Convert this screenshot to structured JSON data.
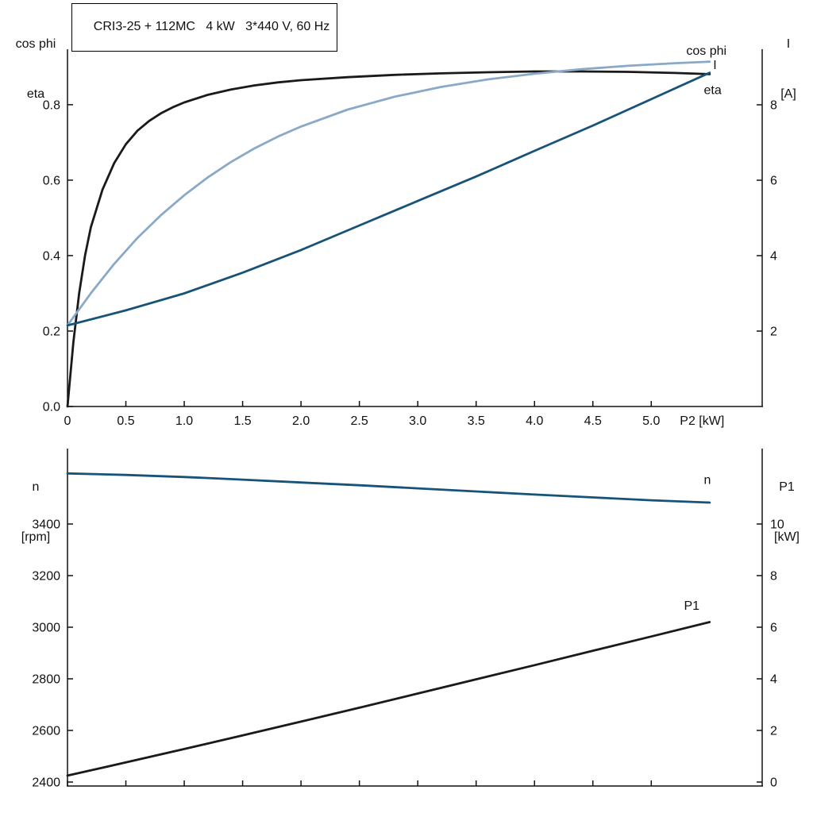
{
  "page": {
    "background": "#ffffff"
  },
  "colors": {
    "black_curve": "#1a1a1a",
    "light_blue_curve": "#8aa9c7",
    "dark_blue_curve": "#175379",
    "axis": "#111111"
  },
  "chart_data": [
    {
      "id": "top",
      "type": "line",
      "title": "CRI3-25 + 112MC   4 kW   3*440 V, 60 Hz",
      "grid": false,
      "legend_position": "inline-labels",
      "corner_labels": {
        "top_left": [
          "cos phi",
          "eta"
        ],
        "top_right": [
          "I",
          "[A]"
        ]
      },
      "x_axis": {
        "label": "P2 [kW]",
        "min": 0,
        "max": 5.95,
        "tick_values": [
          0,
          0.5,
          1,
          1.5,
          2,
          2.5,
          3,
          3.5,
          4,
          4.5,
          5
        ],
        "tick_labels": [
          "0",
          "0.5",
          "1.0",
          "1.5",
          "2.0",
          "2.5",
          "3.0",
          "3.5",
          "4.0",
          "4.5",
          "5.0"
        ]
      },
      "left_axis": {
        "label": "cos phi / eta",
        "min": 0,
        "max": 0.947,
        "tick_values": [
          0,
          0.2,
          0.4,
          0.6,
          0.8
        ],
        "tick_labels": [
          "0.0",
          "0.2",
          "0.4",
          "0.6",
          "0.8"
        ]
      },
      "right_axis": {
        "label": "I [A]",
        "min": 0,
        "max": 9.474,
        "tick_values": [
          2,
          4,
          6,
          8
        ],
        "tick_labels": [
          "2",
          "4",
          "6",
          "8"
        ]
      },
      "series": [
        {
          "name": "eta",
          "axis": "left",
          "color": "#1a1a1a",
          "x": [
            0,
            0.05,
            0.1,
            0.15,
            0.2,
            0.3,
            0.4,
            0.5,
            0.6,
            0.7,
            0.8,
            0.9,
            1.0,
            1.2,
            1.4,
            1.6,
            1.8,
            2.0,
            2.4,
            2.8,
            3.2,
            3.6,
            4.0,
            4.4,
            4.8,
            5.2,
            5.5
          ],
          "y": [
            0,
            0.17,
            0.3,
            0.4,
            0.475,
            0.575,
            0.645,
            0.695,
            0.731,
            0.757,
            0.777,
            0.793,
            0.806,
            0.826,
            0.84,
            0.851,
            0.859,
            0.865,
            0.873,
            0.879,
            0.883,
            0.886,
            0.888,
            0.888,
            0.887,
            0.884,
            0.881
          ],
          "label": {
            "text": "eta",
            "x": 5.45,
            "y": 0.828,
            "color": "#1a1a1a"
          }
        },
        {
          "name": "cos phi",
          "axis": "left",
          "color": "#8aa9c7",
          "x": [
            0,
            0.2,
            0.4,
            0.6,
            0.8,
            1.0,
            1.2,
            1.4,
            1.6,
            1.8,
            2.0,
            2.4,
            2.8,
            3.2,
            3.6,
            4.0,
            4.4,
            4.8,
            5.2,
            5.5
          ],
          "y": [
            0.215,
            0.3,
            0.378,
            0.447,
            0.507,
            0.56,
            0.607,
            0.648,
            0.684,
            0.715,
            0.742,
            0.787,
            0.821,
            0.847,
            0.867,
            0.882,
            0.894,
            0.903,
            0.91,
            0.914
          ],
          "label": {
            "text": "cos phi",
            "x": 5.3,
            "y": 0.932,
            "color": "#8aa9c7"
          }
        },
        {
          "name": "I",
          "axis": "right",
          "color": "#175379",
          "x": [
            0,
            0.5,
            1.0,
            1.5,
            2.0,
            2.5,
            3.0,
            3.5,
            4.0,
            4.5,
            5.0,
            5.5
          ],
          "y": [
            2.15,
            2.55,
            3.0,
            3.55,
            4.15,
            4.8,
            5.45,
            6.1,
            6.78,
            7.45,
            8.15,
            8.85
          ],
          "label": {
            "text": "I",
            "x": 5.53,
            "y": 8.95,
            "color": "#175379"
          }
        }
      ]
    },
    {
      "id": "bottom",
      "type": "line",
      "title": "",
      "grid": false,
      "legend_position": "inline-labels",
      "corner_labels": {
        "top_left": [
          "n",
          "[rpm]"
        ],
        "top_right": [
          "P1",
          "[kW]"
        ]
      },
      "x_axis": {
        "label": "",
        "min": 0,
        "max": 5.95,
        "tick_values": [
          0,
          0.5,
          1,
          1.5,
          2,
          2.5,
          3,
          3.5,
          4,
          4.5,
          5
        ],
        "tick_labels": []
      },
      "left_axis": {
        "label": "n [rpm]",
        "min": 2384.6,
        "max": 3692.3,
        "tick_values": [
          2400,
          2600,
          2800,
          3000,
          3200,
          3400
        ],
        "tick_labels": [
          "2400",
          "2600",
          "2800",
          "3000",
          "3200",
          "3400"
        ]
      },
      "right_axis": {
        "label": "P1 [kW]",
        "min": -0.154,
        "max": 12.923,
        "tick_values": [
          0,
          2,
          4,
          6,
          8,
          10
        ],
        "tick_labels": [
          "0",
          "2",
          "4",
          "6",
          "8",
          "10"
        ]
      },
      "series": [
        {
          "name": "n",
          "axis": "left",
          "color": "#175379",
          "x": [
            0,
            0.5,
            1.0,
            1.5,
            2.0,
            2.5,
            3.0,
            3.5,
            4.0,
            4.5,
            5.0,
            5.5
          ],
          "y": [
            3596,
            3590,
            3582,
            3572,
            3561,
            3550,
            3538,
            3526,
            3514,
            3503,
            3492,
            3483
          ],
          "label": {
            "text": "n",
            "x": 5.45,
            "y": 3556,
            "color": "#175379"
          }
        },
        {
          "name": "P1",
          "axis": "right",
          "color": "#1a1a1a",
          "x": [
            0,
            0.5,
            1.0,
            1.5,
            2.0,
            2.5,
            3.0,
            3.5,
            4.0,
            4.5,
            5.0,
            5.5
          ],
          "y": [
            0.25,
            0.76,
            1.28,
            1.81,
            2.34,
            2.88,
            3.43,
            3.98,
            4.53,
            5.09,
            5.64,
            6.2
          ],
          "label": {
            "text": "P1",
            "x": 5.28,
            "y": 6.68,
            "color": "#1a1a1a"
          }
        }
      ]
    }
  ]
}
